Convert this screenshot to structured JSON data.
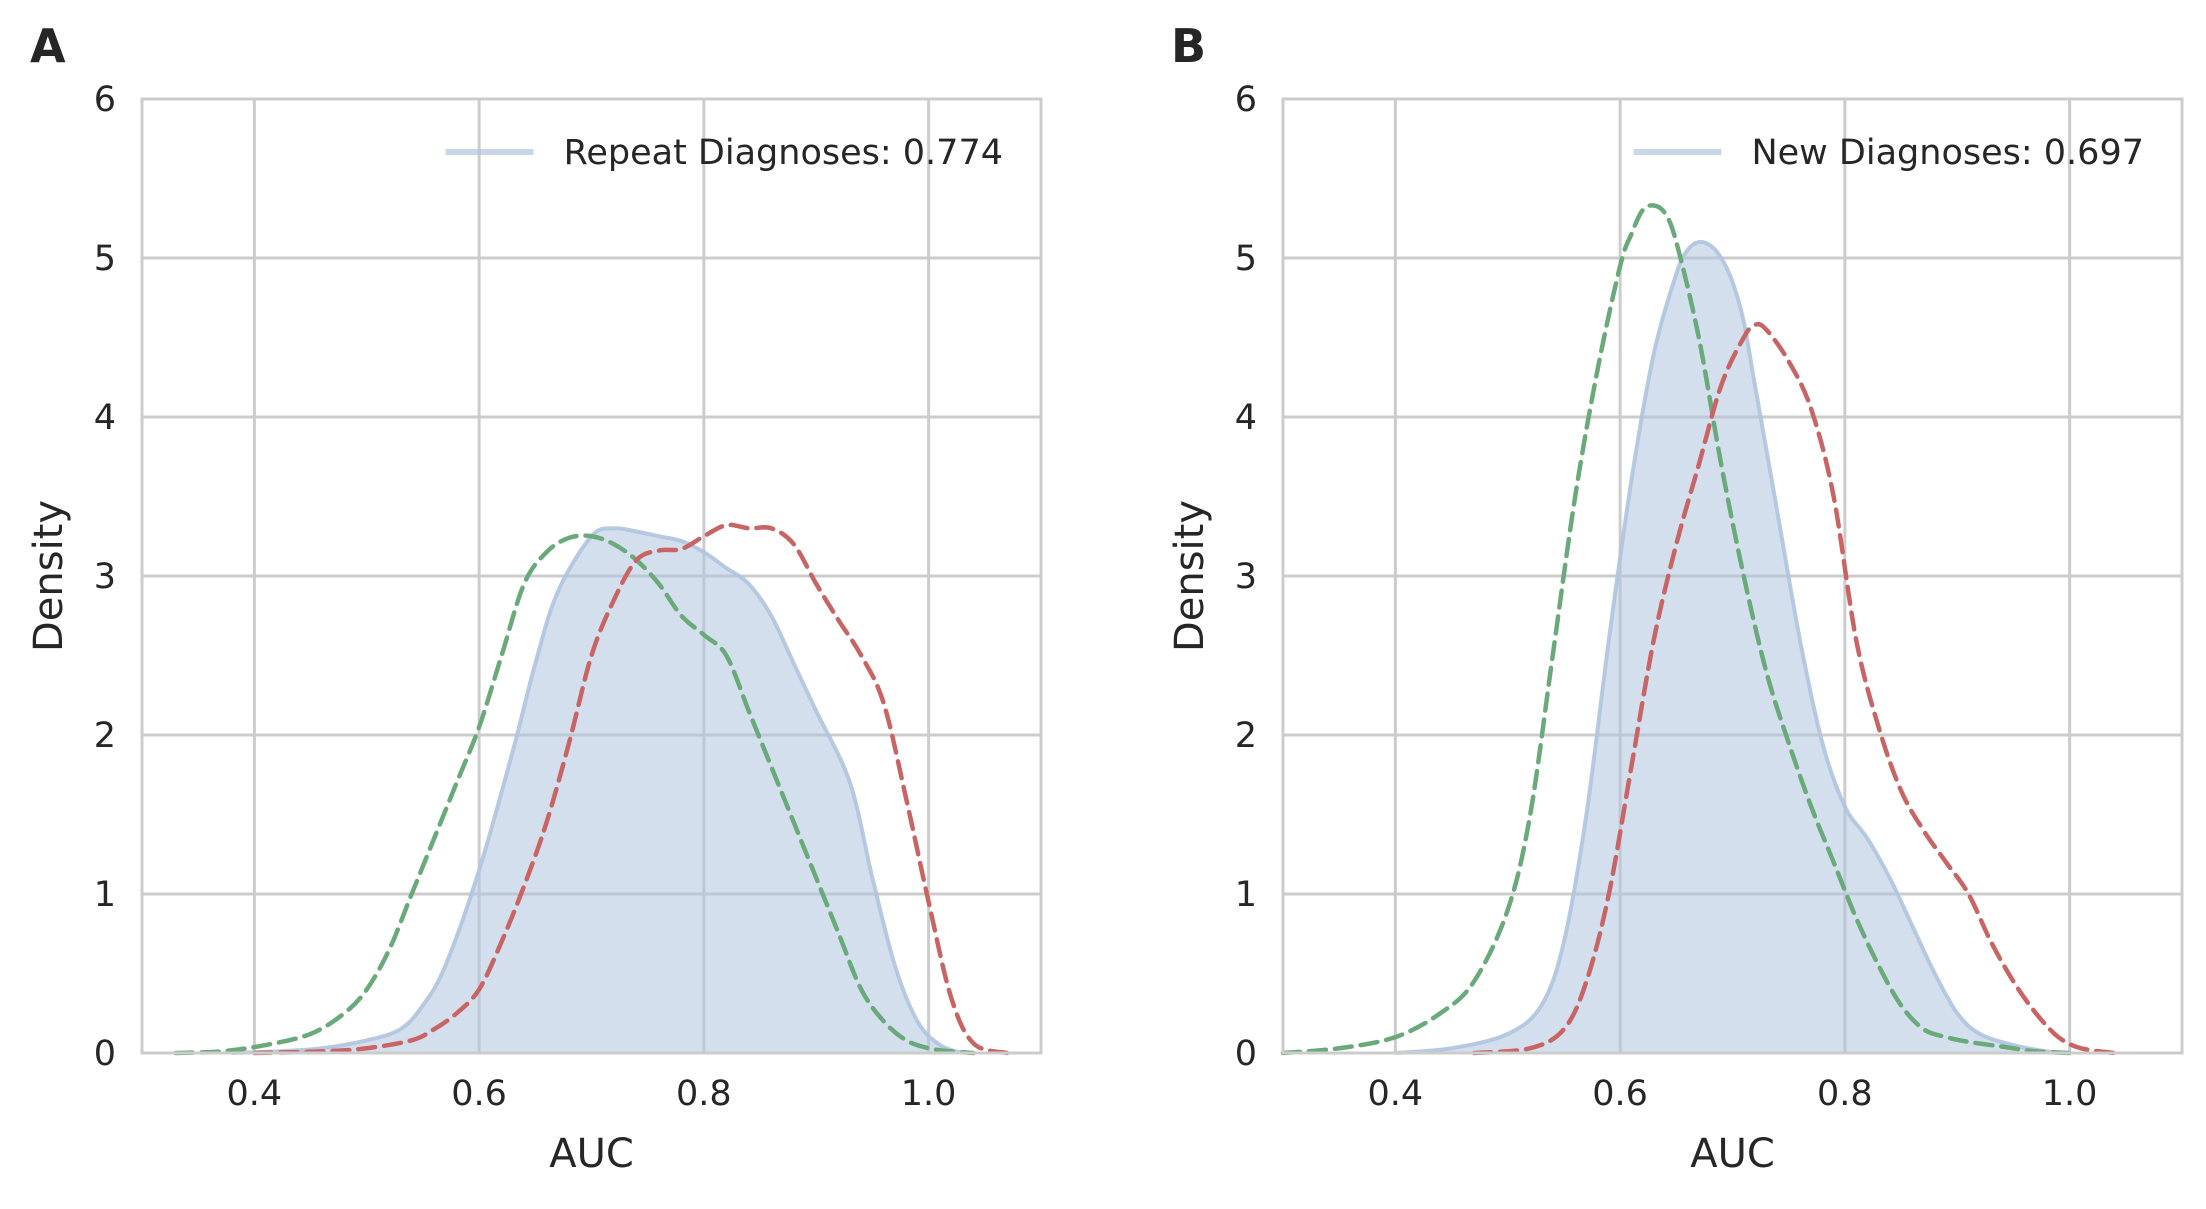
{
  "chart_data": [
    {
      "type": "area",
      "panel_label": "A",
      "xlabel": "AUC",
      "ylabel": "Density",
      "xlim": [
        0.3,
        1.1
      ],
      "ylim": [
        0,
        6
      ],
      "xticks": [
        0.4,
        0.6,
        0.8,
        1.0
      ],
      "xtick_labels": [
        "0.4",
        "0.6",
        "0.8",
        "1.0"
      ],
      "yticks": [
        0,
        1,
        2,
        3,
        4,
        5,
        6
      ],
      "ytick_labels": [
        "0",
        "1",
        "2",
        "3",
        "4",
        "5",
        "6"
      ],
      "grid": true,
      "legend_position": "top-right",
      "legend": {
        "label": "Repeat Diagnoses: 0.774"
      },
      "series": [
        {
          "name": "Repeat Diagnoses: 0.774",
          "style": "filled",
          "color": "#b0c4de",
          "x": [
            0.38,
            0.42,
            0.46,
            0.5,
            0.53,
            0.55,
            0.57,
            0.6,
            0.63,
            0.65,
            0.67,
            0.7,
            0.72,
            0.74,
            0.76,
            0.78,
            0.8,
            0.82,
            0.84,
            0.86,
            0.88,
            0.9,
            0.93,
            0.95,
            0.97,
            0.99,
            1.01,
            1.03
          ],
          "y": [
            0.0,
            0.01,
            0.03,
            0.08,
            0.15,
            0.3,
            0.55,
            1.15,
            1.9,
            2.45,
            2.9,
            3.25,
            3.3,
            3.28,
            3.25,
            3.22,
            3.15,
            3.05,
            2.95,
            2.75,
            2.45,
            2.15,
            1.7,
            1.1,
            0.55,
            0.2,
            0.05,
            0.0
          ]
        },
        {
          "name": "green-dashed",
          "style": "dashed",
          "color": "#6aaa7a",
          "x": [
            0.33,
            0.37,
            0.41,
            0.45,
            0.48,
            0.5,
            0.52,
            0.54,
            0.56,
            0.58,
            0.6,
            0.62,
            0.64,
            0.66,
            0.68,
            0.7,
            0.72,
            0.74,
            0.76,
            0.78,
            0.8,
            0.82,
            0.84,
            0.86,
            0.88,
            0.9,
            0.92,
            0.94,
            0.96,
            0.98,
            1.0,
            1.02,
            1.04
          ],
          "y": [
            0.0,
            0.01,
            0.05,
            0.12,
            0.25,
            0.4,
            0.65,
            1.0,
            1.35,
            1.7,
            2.05,
            2.5,
            2.95,
            3.15,
            3.24,
            3.25,
            3.2,
            3.1,
            2.95,
            2.75,
            2.63,
            2.5,
            2.15,
            1.8,
            1.45,
            1.1,
            0.75,
            0.4,
            0.2,
            0.08,
            0.03,
            0.01,
            0.0
          ]
        },
        {
          "name": "red-dashed",
          "style": "dashed",
          "color": "#c96464",
          "x": [
            0.4,
            0.46,
            0.5,
            0.54,
            0.56,
            0.58,
            0.6,
            0.62,
            0.64,
            0.66,
            0.68,
            0.7,
            0.72,
            0.74,
            0.76,
            0.78,
            0.8,
            0.82,
            0.84,
            0.86,
            0.88,
            0.9,
            0.92,
            0.94,
            0.96,
            0.98,
            1.0,
            1.02,
            1.04,
            1.07
          ],
          "y": [
            0.0,
            0.01,
            0.03,
            0.08,
            0.15,
            0.25,
            0.4,
            0.7,
            1.05,
            1.45,
            1.95,
            2.5,
            2.85,
            3.1,
            3.16,
            3.17,
            3.25,
            3.32,
            3.3,
            3.3,
            3.2,
            2.95,
            2.72,
            2.5,
            2.2,
            1.6,
            0.95,
            0.35,
            0.06,
            0.0
          ]
        }
      ]
    },
    {
      "type": "area",
      "panel_label": "B",
      "xlabel": "AUC",
      "ylabel": "Density",
      "xlim": [
        0.3,
        1.1
      ],
      "ylim": [
        0,
        6
      ],
      "xticks": [
        0.4,
        0.6,
        0.8,
        1.0
      ],
      "xtick_labels": [
        "0.4",
        "0.6",
        "0.8",
        "1.0"
      ],
      "yticks": [
        0,
        1,
        2,
        3,
        4,
        5,
        6
      ],
      "ytick_labels": [
        "0",
        "1",
        "2",
        "3",
        "4",
        "5",
        "6"
      ],
      "grid": true,
      "legend_position": "top-right",
      "legend": {
        "label": "New Diagnoses: 0.697"
      },
      "series": [
        {
          "name": "New Diagnoses: 0.697",
          "style": "filled",
          "color": "#b0c4de",
          "x": [
            0.4,
            0.45,
            0.5,
            0.53,
            0.55,
            0.57,
            0.59,
            0.61,
            0.63,
            0.65,
            0.66,
            0.67,
            0.68,
            0.69,
            0.7,
            0.71,
            0.72,
            0.74,
            0.76,
            0.78,
            0.8,
            0.82,
            0.84,
            0.86,
            0.88,
            0.9,
            0.92,
            0.95,
            0.98,
            1.0
          ],
          "y": [
            0.0,
            0.03,
            0.12,
            0.3,
            0.7,
            1.5,
            2.6,
            3.6,
            4.4,
            4.9,
            5.05,
            5.1,
            5.08,
            5.0,
            4.85,
            4.6,
            4.2,
            3.4,
            2.6,
            1.95,
            1.55,
            1.35,
            1.1,
            0.8,
            0.5,
            0.25,
            0.12,
            0.05,
            0.01,
            0.0
          ]
        },
        {
          "name": "green-dashed",
          "style": "dashed",
          "color": "#6aaa7a",
          "x": [
            0.3,
            0.35,
            0.4,
            0.44,
            0.47,
            0.5,
            0.52,
            0.54,
            0.56,
            0.58,
            0.6,
            0.61,
            0.62,
            0.63,
            0.64,
            0.65,
            0.67,
            0.69,
            0.71,
            0.73,
            0.75,
            0.77,
            0.79,
            0.81,
            0.83,
            0.85,
            0.87,
            0.89,
            0.91,
            0.94,
            0.97,
            1.0
          ],
          "y": [
            0.0,
            0.03,
            0.1,
            0.25,
            0.45,
            0.9,
            1.5,
            2.5,
            3.5,
            4.3,
            4.95,
            5.15,
            5.3,
            5.33,
            5.28,
            5.1,
            4.5,
            3.7,
            3.0,
            2.4,
            1.95,
            1.55,
            1.2,
            0.85,
            0.55,
            0.3,
            0.15,
            0.1,
            0.07,
            0.04,
            0.01,
            0.0
          ]
        },
        {
          "name": "red-dashed",
          "style": "dashed",
          "color": "#c96464",
          "x": [
            0.47,
            0.52,
            0.55,
            0.57,
            0.59,
            0.61,
            0.63,
            0.65,
            0.67,
            0.69,
            0.71,
            0.72,
            0.73,
            0.75,
            0.77,
            0.79,
            0.81,
            0.83,
            0.85,
            0.87,
            0.89,
            0.91,
            0.93,
            0.95,
            0.97,
            0.99,
            1.01,
            1.04
          ],
          "y": [
            0.0,
            0.03,
            0.15,
            0.45,
            1.0,
            1.8,
            2.6,
            3.2,
            3.7,
            4.2,
            4.5,
            4.58,
            4.55,
            4.35,
            4.05,
            3.5,
            2.6,
            2.05,
            1.65,
            1.4,
            1.2,
            1.0,
            0.7,
            0.45,
            0.25,
            0.1,
            0.03,
            0.0
          ]
        }
      ]
    }
  ]
}
